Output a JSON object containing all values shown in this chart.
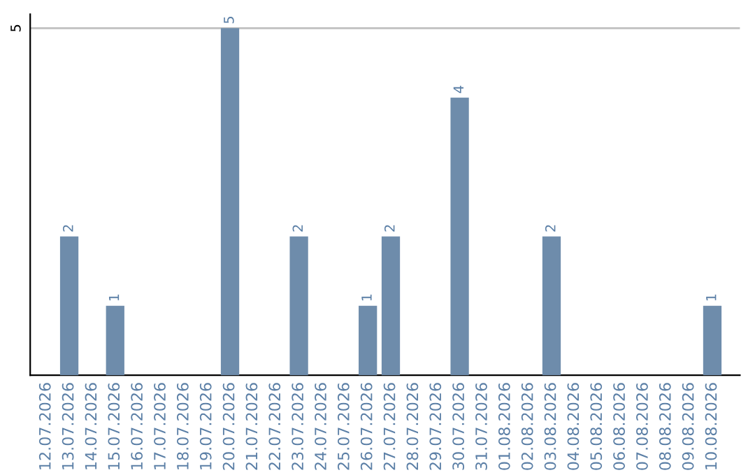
{
  "chart_data": {
    "type": "bar",
    "categories": [
      "12.07.2026",
      "13.07.2026",
      "14.07.2026",
      "15.07.2026",
      "16.07.2026",
      "17.07.2026",
      "18.07.2026",
      "19.07.2026",
      "20.07.2026",
      "21.07.2026",
      "22.07.2026",
      "23.07.2026",
      "24.07.2026",
      "25.07.2026",
      "26.07.2026",
      "27.07.2026",
      "28.07.2026",
      "29.07.2026",
      "30.07.2026",
      "31.07.2026",
      "01.08.2026",
      "02.08.2026",
      "03.08.2026",
      "04.08.2026",
      "05.08.2026",
      "06.08.2026",
      "07.08.2026",
      "08.08.2026",
      "09.08.2026",
      "10.08.2026"
    ],
    "values": [
      0,
      2,
      0,
      1,
      0,
      0,
      0,
      0,
      5,
      0,
      0,
      2,
      0,
      0,
      1,
      2,
      0,
      0,
      4,
      0,
      0,
      0,
      2,
      0,
      0,
      0,
      0,
      0,
      0,
      1
    ],
    "value_labels": [
      null,
      "2",
      null,
      "1",
      null,
      null,
      null,
      null,
      "5",
      null,
      null,
      "2",
      null,
      null,
      "1",
      "2",
      null,
      null,
      "4",
      null,
      null,
      null,
      "2",
      null,
      null,
      null,
      null,
      null,
      null,
      "1"
    ],
    "color": "#6e8cab",
    "ylim": [
      0,
      5.2
    ],
    "yticks": [
      5
    ],
    "grid": "y"
  }
}
